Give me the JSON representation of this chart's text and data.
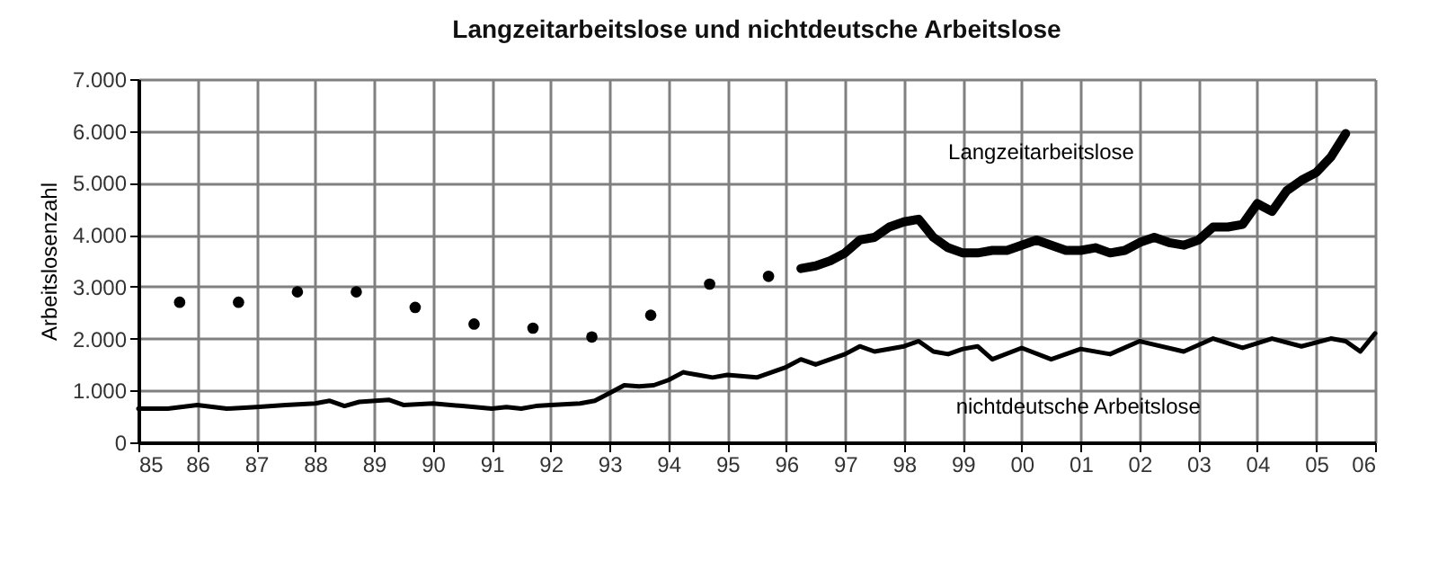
{
  "chart_data": {
    "type": "line",
    "title": "Langzeitarbeitslose und nichtdeutsche Arbeitslose",
    "ylabel": "Arbeitslosenzahl",
    "xlim": [
      1985,
      2006
    ],
    "xticks": [
      {
        "value": 1985,
        "label": "85"
      },
      {
        "value": 1986,
        "label": "86"
      },
      {
        "value": 1987,
        "label": "87"
      },
      {
        "value": 1988,
        "label": "88"
      },
      {
        "value": 1989,
        "label": "89"
      },
      {
        "value": 1990,
        "label": "90"
      },
      {
        "value": 1991,
        "label": "91"
      },
      {
        "value": 1992,
        "label": "92"
      },
      {
        "value": 1993,
        "label": "93"
      },
      {
        "value": 1994,
        "label": "94"
      },
      {
        "value": 1995,
        "label": "95"
      },
      {
        "value": 1996,
        "label": "96"
      },
      {
        "value": 1997,
        "label": "97"
      },
      {
        "value": 1998,
        "label": "98"
      },
      {
        "value": 1999,
        "label": "99"
      },
      {
        "value": 2000,
        "label": "00"
      },
      {
        "value": 2001,
        "label": "01"
      },
      {
        "value": 2002,
        "label": "02"
      },
      {
        "value": 2003,
        "label": "03"
      },
      {
        "value": 2004,
        "label": "04"
      },
      {
        "value": 2005,
        "label": "05"
      },
      {
        "value": 2006,
        "label": "06"
      }
    ],
    "ylim": [
      0,
      7000
    ],
    "yticks": [
      0,
      {
        "value": 1000,
        "label": "1.000"
      },
      {
        "value": 2000,
        "label": "2.000"
      },
      {
        "value": 3000,
        "label": "3.000"
      },
      {
        "value": 4000,
        "label": "4.000"
      },
      {
        "value": 5000,
        "label": "5.000"
      },
      {
        "value": 6000,
        "label": "6.000"
      },
      {
        "value": 7000,
        "label": "7.000"
      }
    ],
    "grid": true,
    "series": [
      {
        "type": "scatter",
        "marker": "circle",
        "color": "#000000",
        "x": [
          1985.7,
          1986.7,
          1987.7,
          1988.7,
          1989.7,
          1990.7,
          1991.7,
          1992.7,
          1993.7,
          1994.7,
          1995.7
        ],
        "values": [
          2700,
          2700,
          2900,
          2900,
          2600,
          2280,
          2200,
          2030,
          2450,
          3050,
          3200
        ]
      },
      {
        "name": "Langzeitarbeitslose",
        "color": "#000000",
        "x": [
          1996.25,
          1996.5,
          1996.75,
          1997,
          1997.25,
          1997.5,
          1997.75,
          1998,
          1998.25,
          1998.5,
          1998.75,
          1999,
          1999.25,
          1999.5,
          1999.75,
          2000,
          2000.25,
          2000.5,
          2000.75,
          2001,
          2001.25,
          2001.5,
          2001.75,
          2002,
          2002.25,
          2002.5,
          2002.75,
          2003,
          2003.25,
          2003.5,
          2003.75,
          2004,
          2004.25,
          2004.5,
          2004.75,
          2005,
          2005.25,
          2005.5
        ],
        "values": [
          3350,
          3400,
          3500,
          3650,
          3900,
          3950,
          4150,
          4250,
          4300,
          3950,
          3750,
          3650,
          3650,
          3700,
          3700,
          3800,
          3900,
          3800,
          3700,
          3700,
          3750,
          3650,
          3700,
          3850,
          3950,
          3850,
          3800,
          3900,
          4150,
          4150,
          4200,
          4600,
          4450,
          4850,
          5050,
          5200,
          5500,
          5950
        ]
      },
      {
        "name": "nichtdeutsche Arbeitslose",
        "color": "#000000",
        "x": [
          1985,
          1985.5,
          1986,
          1986.5,
          1987,
          1987.5,
          1988,
          1988.25,
          1988.5,
          1988.75,
          1989.25,
          1989.5,
          1990,
          1990.5,
          1991,
          1991.25,
          1991.5,
          1991.75,
          1992,
          1992.5,
          1992.75,
          1993,
          1993.25,
          1993.5,
          1993.75,
          1994,
          1994.25,
          1994.5,
          1994.75,
          1995,
          1995.5,
          1996,
          1996.25,
          1996.5,
          1997,
          1997.25,
          1997.5,
          1998,
          1998.25,
          1998.5,
          1998.75,
          1999,
          1999.25,
          1999.5,
          2000,
          2000.5,
          2001,
          2001.5,
          2002,
          2002.75,
          2003.25,
          2003.75,
          2004.25,
          2004.75,
          2005.25,
          2005.5,
          2005.75,
          2006
        ],
        "values": [
          650,
          650,
          720,
          650,
          680,
          720,
          750,
          800,
          700,
          780,
          820,
          720,
          750,
          700,
          650,
          680,
          650,
          700,
          720,
          750,
          800,
          950,
          1100,
          1080,
          1100,
          1200,
          1350,
          1300,
          1250,
          1300,
          1250,
          1450,
          1600,
          1500,
          1700,
          1850,
          1750,
          1850,
          1950,
          1750,
          1700,
          1800,
          1850,
          1600,
          1820,
          1600,
          1800,
          1700,
          1950,
          1750,
          2000,
          1820,
          2000,
          1850,
          2000,
          1950,
          1750,
          2100
        ]
      }
    ]
  }
}
